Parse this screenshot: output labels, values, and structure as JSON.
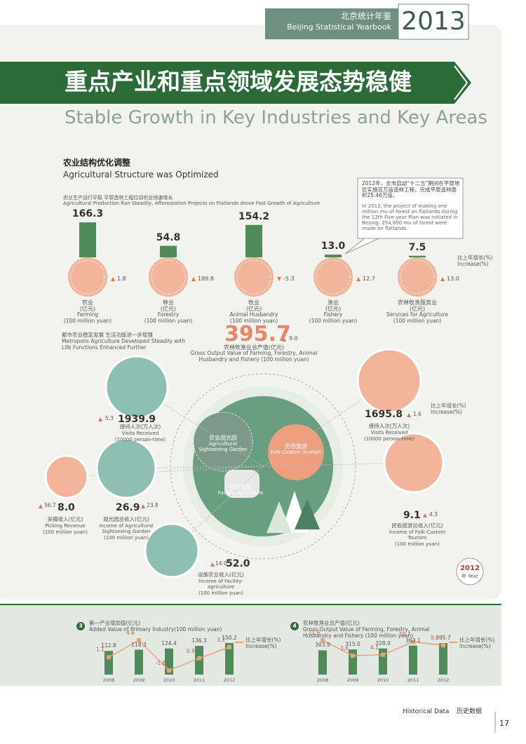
{
  "header": {
    "cn": "北京统计年鉴",
    "en": "Beijing Statistical Yearbook",
    "year": "2013"
  },
  "title": {
    "cn": "重点产业和重点领域发展态势稳健",
    "en": "Stable Growth in Key Industries and Key Areas"
  },
  "section": {
    "cn": "农业结构优化调整",
    "en": "Agricultural Structure was Optimized"
  },
  "production": {
    "cn": "农业生产运行平稳 平原造林工程拉动农业快速增长",
    "en": "Agricultural Production Ran Steadily, Afforestation Projects on Flatlands drove Fast Growth of Agriculture",
    "unit_cn": "(亿元)",
    "unit_en": "(100 million yuan)",
    "growth_cn": "比上年增长(%)",
    "growth_en": "Increase(%)",
    "sectors": [
      {
        "cn": "农业",
        "en": "Farming",
        "value": 166.3,
        "growth": 1.8
      },
      {
        "cn": "林业",
        "en": "Forestry",
        "value": 54.8,
        "growth": 189.8
      },
      {
        "cn": "牧业",
        "en": "Animal Husbandry",
        "value": 154.2,
        "growth": -5.3
      },
      {
        "cn": "渔业",
        "en": "Fishery",
        "value": 13.0,
        "value_label": "13.0",
        "growth": 12.7
      },
      {
        "cn": "农林牧渔服务业",
        "en": "Services for Agriculture",
        "value": 7.5,
        "growth": 13.0,
        "growth_label": "13.0"
      }
    ]
  },
  "note": {
    "cn": "2012年，全市启动“十二五”期间在平原地区实施百万亩造林工程，完成平原造林面积25.46万亩。",
    "en": "In 2012, the project of making one million mu of forest on flatlands during the 12th Five-year Plan was initiated in Beijing. 254,600 mu of forest were made on flatlands."
  },
  "total": {
    "value": 395.7,
    "growth": 9.0,
    "growth_label": "9.0",
    "cn": "农林牧渔业总产值(亿元)",
    "en": "Gross Output Value of Farming, Forestry, Animal Husbandry and Fishery (100 million yuan)"
  },
  "metropolis": {
    "cn": "都市农业稳定发展 生活功能进一步增强",
    "en": "Metropolis Agriculture Developed Steadily with Life Functions Enhanced Further",
    "areas": [
      {
        "cn": "农业观光园",
        "en": "Agricultural Sightseeing Garden"
      },
      {
        "cn": "民俗旅游",
        "en": "Folk-Custom Tourism"
      },
      {
        "cn": "设施农业",
        "en": "Facility-agriculture"
      }
    ],
    "indicators": [
      {
        "value": 1939.9,
        "growth": 5.3,
        "cn": "接待人次(万人次)",
        "en": "Visits Received",
        "unit": "(10000 person-time)"
      },
      {
        "value": 8.0,
        "value_label": "8.0",
        "growth": 56.7,
        "cn": "采摘收入(亿元)",
        "en": "Picking Revenue",
        "unit": "(100 million yuan)"
      },
      {
        "value": 26.9,
        "growth": 23.8,
        "cn": "观光园总收入(亿元)",
        "en": "Income of Agricultural Sightseeing Garden",
        "unit": "(100 million yuan)"
      },
      {
        "value": 52.0,
        "value_label": "52.0",
        "growth": 14.0,
        "growth_label": "14.0",
        "cn": "设施农业收入(亿元)",
        "en": "Income of Facility-agriculture",
        "unit": "(100 million yuan)"
      },
      {
        "value": 1695.8,
        "growth": 1.6,
        "cn": "接待人次(万人次)",
        "en": "Visits Received",
        "unit": "(10000 person-time)"
      },
      {
        "value": 9.1,
        "growth": 4.3,
        "cn": "民俗旅游总收入(亿元)",
        "en": "Income of Folk-Custom Tourism",
        "unit": "(100 million yuan)"
      }
    ],
    "badge": {
      "year": "2012",
      "label": "年 Year"
    }
  },
  "chart_data": [
    {
      "type": "combo",
      "number": "3",
      "title": "第一产业增加值(亿元)",
      "subtitle": "Added Value of Primary Industry(100 million yuan)",
      "categories": [
        "2008",
        "2009",
        "2010",
        "2011",
        "2012"
      ],
      "series": [
        {
          "color": "#4f8a5b",
          "values": [
            112.8,
            118.3,
            124.4,
            136.3,
            150.2
          ]
        },
        {
          "name": "比上年增长(%)",
          "name_en": "Increase(%)",
          "color": "#e8a27a",
          "axis": "y2",
          "values": [
            1.1,
            4.6,
            -1.6,
            0.9,
            3.2
          ]
        }
      ]
    },
    {
      "type": "combo",
      "number": "4",
      "title": "农林牧渔业总产值(亿元)",
      "subtitle": "Gross Output Value of Farming, Forestry, Animal Husbandry and Fishery (100 million yuan)",
      "categories": [
        "2008",
        "2009",
        "2010",
        "2011",
        "2012"
      ],
      "series": [
        {
          "color": "#4f8a5b",
          "values": [
            303.9,
            315.0,
            328.0,
            363.1,
            395.7
          ],
          "value_labels": [
            "303.9",
            "315.0",
            "328.0",
            "363.1",
            "395.7"
          ]
        },
        {
          "name": "比上年增长(%)",
          "name_en": "Increase(%)",
          "color": "#e8a27a",
          "axis": "y2",
          "values": [
            11.6,
            3.6,
            4.1,
            10.7,
            9.0
          ],
          "value_labels": [
            "11.6",
            "3.6",
            "4.1",
            "10.7",
            "9.0"
          ]
        }
      ]
    }
  ],
  "footer": {
    "en": "Historical Data",
    "cn": "历史数据",
    "page": "17"
  }
}
